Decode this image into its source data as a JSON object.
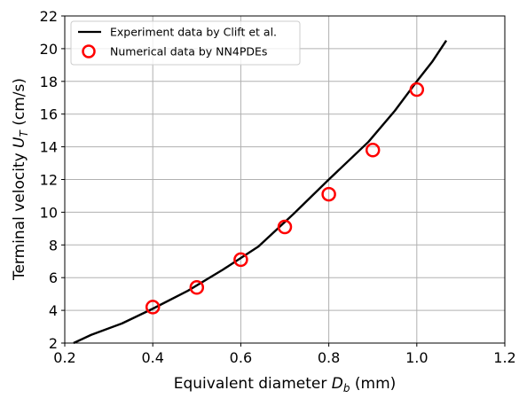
{
  "chart_data": {
    "type": "line",
    "title": "",
    "xlabel": {
      "prefix": "Equivalent diameter ",
      "symbol": "D",
      "subscript": "b",
      "unit": " (mm)"
    },
    "ylabel": {
      "prefix": "Terminal velocity ",
      "symbol": "U",
      "subscript": "T",
      "unit": " (cm/s)"
    },
    "xlim": [
      0.2,
      1.2
    ],
    "ylim": [
      2,
      22
    ],
    "xticks": [
      0.2,
      0.4,
      0.6,
      0.8,
      1.0,
      1.2
    ],
    "xtick_labels": [
      "0.2",
      "0.4",
      "0.6",
      "0.8",
      "1.0",
      "1.2"
    ],
    "yticks": [
      2,
      4,
      6,
      8,
      10,
      12,
      14,
      16,
      18,
      20,
      22
    ],
    "ytick_labels": [
      "2",
      "4",
      "6",
      "8",
      "10",
      "12",
      "14",
      "16",
      "18",
      "20",
      "22"
    ],
    "grid": true,
    "legend_position": "top-left",
    "series": [
      {
        "name": "Experiment data by Clift et al.",
        "style": "line",
        "color": "#000000",
        "x": [
          0.22,
          0.26,
          0.33,
          0.4,
          0.48,
          0.56,
          0.64,
          0.72,
          0.8,
          0.89,
          0.95,
          1.0,
          1.035,
          1.067
        ],
        "y": [
          2.0,
          2.5,
          3.2,
          4.1,
          5.2,
          6.5,
          7.9,
          9.9,
          12.0,
          14.3,
          16.2,
          18.0,
          19.2,
          20.5
        ]
      },
      {
        "name": "Numerical data by NN4PDEs",
        "style": "marker",
        "marker": "open-circle",
        "color": "#ff0000",
        "x": [
          0.4,
          0.5,
          0.6,
          0.7,
          0.8,
          0.9,
          1.0
        ],
        "y": [
          4.2,
          5.4,
          7.1,
          9.1,
          11.1,
          13.8,
          17.5
        ]
      }
    ]
  }
}
